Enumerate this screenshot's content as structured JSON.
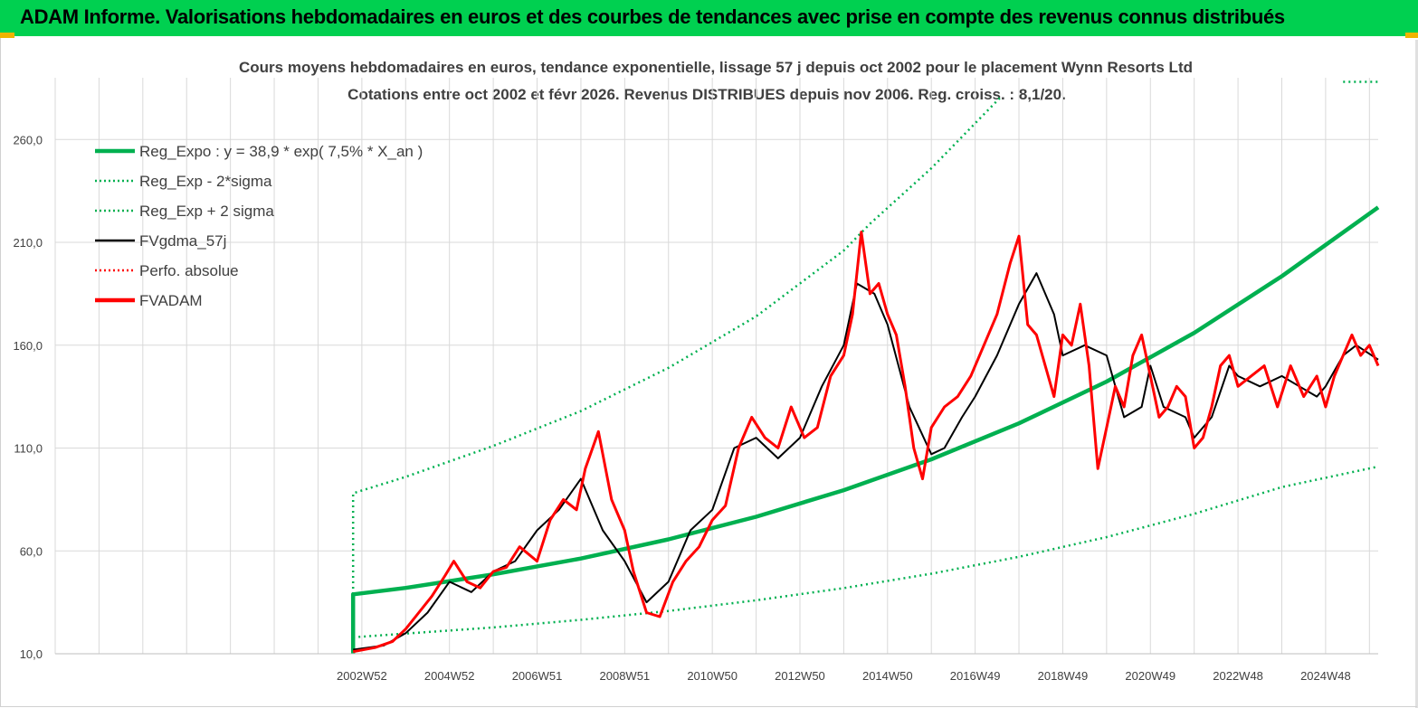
{
  "header": {
    "title": "ADAM Informe. Valorisations hebdomadaires en euros et des courbes de tendances avec prise en compte des revenus connus distribués"
  },
  "colors": {
    "header_bg": "#00d050",
    "accent": "#f0b400",
    "green": "#00b050",
    "black": "#000000",
    "red": "#ff0000",
    "grid": "#d9d9d9"
  },
  "chart_data": {
    "type": "line",
    "title_line1": "Cours moyens hebdomadaires en euros, tendance exponentielle, lissage 57 j depuis oct 2002 pour le placement Wynn Resorts Ltd",
    "title_line2": "Cotations entre oct 2002 et févr 2026. Revenus DISTRIBUES depuis nov 2006. Reg. croiss. : 8,1/20.",
    "xlabel": "",
    "ylabel": "",
    "x_range": [
      1996.0,
      2026.2
    ],
    "ylim": [
      10,
      290
    ],
    "y_ticks": [
      10,
      60,
      110,
      160,
      210,
      260
    ],
    "y_tick_labels": [
      "10,0",
      "60,0",
      "110,0",
      "160,0",
      "210,0",
      "260,0"
    ],
    "x_tick_labels": [
      "2002W52",
      "2004W52",
      "2006W51",
      "2008W51",
      "2010W50",
      "2012W50",
      "2014W50",
      "2016W49",
      "2018W49",
      "2020W49",
      "2022W48",
      "2024W48"
    ],
    "x_tick_positions": [
      2003.0,
      2005.0,
      2007.0,
      2009.0,
      2011.0,
      2013.0,
      2015.0,
      2017.0,
      2019.0,
      2021.0,
      2023.0,
      2025.0
    ],
    "legend": [
      {
        "label": "Reg_Expo : y = 38,9 * exp( 7,5% *  X_an )",
        "color": "#00b050",
        "style": "thick"
      },
      {
        "label": "Reg_Exp - 2*sigma",
        "color": "#00b050",
        "style": "dotted"
      },
      {
        "label": "Reg_Exp + 2 sigma",
        "color": "#00b050",
        "style": "dotted"
      },
      {
        "label": "FVgdma_57j",
        "color": "#000000",
        "style": "solid"
      },
      {
        "label": "Perfo. absolue",
        "color": "#ff0000",
        "style": "dotted"
      },
      {
        "label": "FVADAM",
        "color": "#ff0000",
        "style": "thick"
      }
    ],
    "series": [
      {
        "name": "Reg_Expo : y = 38,9 * exp( 7,5% *  X_an )",
        "x": [
          2002.8,
          2002.8,
          2004.0,
          2006.0,
          2008.0,
          2010.0,
          2012.0,
          2014.0,
          2016.0,
          2018.0,
          2020.0,
          2022.0,
          2024.0,
          2026.2
        ],
        "values": [
          10,
          38.9,
          42.0,
          48.6,
          56.3,
          65.6,
          76.6,
          89.5,
          104.5,
          122.0,
          142.3,
          166.0,
          193.5,
          227.0
        ]
      },
      {
        "name": "Reg_Exp - 2*sigma",
        "x": [
          2002.8,
          2004.0,
          2006.0,
          2008.0,
          2010.0,
          2012.0,
          2014.0,
          2016.0,
          2018.0,
          2020.0,
          2022.0,
          2024.0,
          2026.2
        ],
        "values": [
          18.0,
          19.8,
          22.8,
          26.5,
          30.8,
          36.0,
          41.9,
          48.9,
          57.1,
          66.7,
          78.0,
          91.0,
          101.0
        ]
      },
      {
        "name": "Reg_Exp + 2 sigma",
        "x": [
          2002.8,
          2002.8,
          2004.0,
          2006.0,
          2008.0,
          2010.0,
          2012.0,
          2014.0,
          2014.6,
          2016.0,
          2017.6
        ],
        "values": [
          10,
          88.0,
          96.0,
          111.0,
          128.0,
          149.0,
          174.0,
          206.0,
          219.0,
          246.0,
          281.0
        ]
      },
      {
        "name": "Reg_Exp + 2 sigma (top)",
        "x": [
          2025.4,
          2026.2
        ],
        "values": [
          288.0,
          288.0
        ]
      },
      {
        "name": "FVgdma_57j",
        "x": [
          2002.8,
          2003.5,
          2004.0,
          2004.5,
          2005.0,
          2005.5,
          2006.0,
          2006.5,
          2007.0,
          2007.5,
          2008.0,
          2008.5,
          2009.0,
          2009.5,
          2010.0,
          2010.5,
          2011.0,
          2011.5,
          2012.0,
          2012.5,
          2013.0,
          2013.5,
          2014.0,
          2014.3,
          2014.7,
          2015.0,
          2015.5,
          2016.0,
          2016.3,
          2016.7,
          2017.0,
          2017.5,
          2018.0,
          2018.4,
          2018.8,
          2019.0,
          2019.5,
          2020.0,
          2020.4,
          2020.8,
          2021.0,
          2021.3,
          2021.8,
          2022.0,
          2022.4,
          2022.8,
          2023.0,
          2023.5,
          2024.0,
          2024.4,
          2024.8,
          2025.0,
          2025.4,
          2025.7,
          2026.2
        ],
        "values": [
          12,
          14,
          20,
          30,
          45,
          40,
          50,
          55,
          70,
          80,
          95,
          70,
          55,
          35,
          45,
          70,
          80,
          110,
          115,
          105,
          115,
          140,
          160,
          190,
          185,
          170,
          130,
          107,
          110,
          125,
          135,
          155,
          180,
          195,
          175,
          155,
          160,
          155,
          125,
          130,
          150,
          130,
          125,
          115,
          125,
          150,
          145,
          140,
          145,
          140,
          135,
          140,
          155,
          160,
          153
        ]
      },
      {
        "name": "FVADAM",
        "x": [
          2002.8,
          2003.3,
          2003.7,
          2004.0,
          2004.3,
          2004.6,
          2004.9,
          2005.1,
          2005.4,
          2005.7,
          2006.0,
          2006.3,
          2006.6,
          2007.0,
          2007.3,
          2007.6,
          2007.9,
          2008.1,
          2008.4,
          2008.7,
          2009.0,
          2009.2,
          2009.5,
          2009.8,
          2010.1,
          2010.4,
          2010.7,
          2011.0,
          2011.3,
          2011.6,
          2011.9,
          2012.2,
          2012.5,
          2012.8,
          2013.1,
          2013.4,
          2013.7,
          2014.0,
          2014.2,
          2014.4,
          2014.6,
          2014.8,
          2015.0,
          2015.2,
          2015.4,
          2015.6,
          2015.8,
          2016.0,
          2016.3,
          2016.6,
          2016.9,
          2017.2,
          2017.5,
          2017.8,
          2018.0,
          2018.2,
          2018.4,
          2018.6,
          2018.8,
          2019.0,
          2019.2,
          2019.4,
          2019.6,
          2019.8,
          2020.0,
          2020.2,
          2020.4,
          2020.6,
          2020.8,
          2021.0,
          2021.2,
          2021.4,
          2021.6,
          2021.8,
          2022.0,
          2022.2,
          2022.4,
          2022.6,
          2022.8,
          2023.0,
          2023.3,
          2023.6,
          2023.9,
          2024.2,
          2024.5,
          2024.8,
          2025.0,
          2025.2,
          2025.4,
          2025.6,
          2025.8,
          2026.0,
          2026.2
        ],
        "values": [
          11,
          13,
          16,
          22,
          30,
          38,
          48,
          55,
          45,
          42,
          50,
          52,
          62,
          55,
          75,
          85,
          80,
          100,
          118,
          85,
          70,
          50,
          30,
          28,
          45,
          55,
          62,
          75,
          82,
          110,
          125,
          115,
          110,
          130,
          115,
          120,
          145,
          155,
          175,
          215,
          185,
          190,
          175,
          165,
          140,
          110,
          95,
          120,
          130,
          135,
          145,
          160,
          175,
          200,
          213,
          170,
          165,
          150,
          135,
          165,
          160,
          180,
          150,
          100,
          120,
          140,
          130,
          155,
          165,
          145,
          125,
          130,
          140,
          135,
          110,
          115,
          130,
          150,
          155,
          140,
          145,
          150,
          130,
          150,
          135,
          145,
          130,
          145,
          155,
          165,
          155,
          160,
          150
        ]
      }
    ]
  }
}
